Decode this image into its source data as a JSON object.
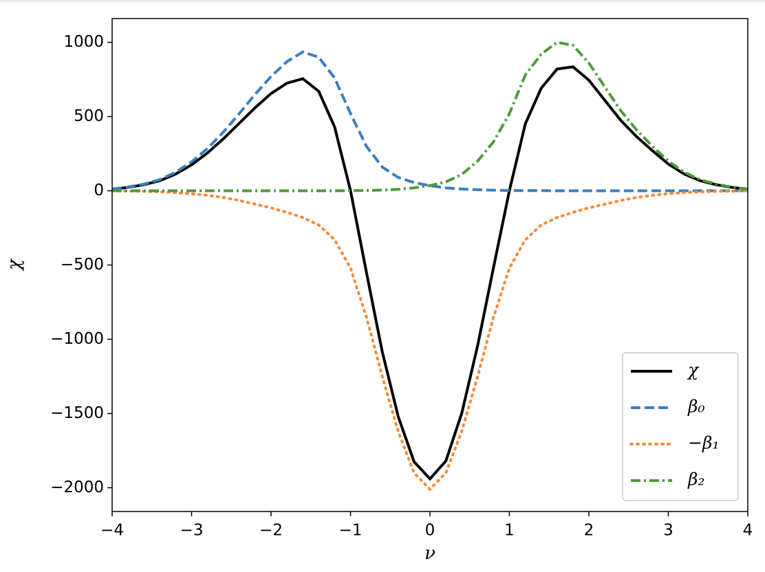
{
  "chart_data": {
    "type": "line",
    "x_label": "ν",
    "y_label": "χ",
    "x": [
      -4,
      -3.8,
      -3.6,
      -3.4,
      -3.2,
      -3,
      -2.8,
      -2.6,
      -2.4,
      -2.2,
      -2,
      -1.8,
      -1.6,
      -1.4,
      -1.2,
      -1,
      -0.8,
      -0.6,
      -0.4,
      -0.2,
      0,
      0.2,
      0.4,
      0.6,
      0.8,
      1,
      1.2,
      1.4,
      1.6,
      1.8,
      2,
      2.2,
      2.4,
      2.6,
      2.8,
      3,
      3.2,
      3.4,
      3.6,
      3.8,
      4
    ],
    "series": [
      {
        "name": "χ",
        "color": "#000000",
        "dash": "solid",
        "values": [
          11,
          23,
          41,
          68,
          113,
          175,
          255,
          350,
          455,
          560,
          655,
          725,
          755,
          670,
          430,
          1,
          -548,
          -1085,
          -1520,
          -1825,
          -1940,
          -1820,
          -1498,
          -1043,
          -516,
          2,
          451,
          691,
          820,
          835,
          745,
          610,
          475,
          365,
          270,
          180,
          113,
          68,
          41,
          23,
          11
        ]
      },
      {
        "name": "β₀",
        "color": "#3a7ebf",
        "dash": "dashed",
        "values": [
          12,
          25,
          45,
          75,
          125,
          195,
          285,
          395,
          520,
          650,
          770,
          870,
          935,
          900,
          760,
          520,
          300,
          160,
          90,
          55,
          35,
          20,
          12,
          7,
          4,
          2,
          1,
          1,
          0,
          0,
          0,
          0,
          0,
          0,
          0,
          0,
          0,
          0,
          0,
          0,
          0
        ]
      },
      {
        "name": "−β₁",
        "color": "#f58b3c",
        "dash": "dotted",
        "values": [
          -1,
          -2,
          -4,
          -7,
          -12,
          -20,
          -30,
          -45,
          -65,
          -90,
          -115,
          -145,
          -180,
          -230,
          -330,
          -520,
          -850,
          -1250,
          -1620,
          -1900,
          -2010,
          -1900,
          -1620,
          -1250,
          -850,
          -520,
          -330,
          -230,
          -180,
          -145,
          -115,
          -90,
          -65,
          -45,
          -30,
          -20,
          -12,
          -7,
          -4,
          -2,
          -1
        ]
      },
      {
        "name": "β₂",
        "color": "#4e9a3a",
        "dash": "dashdot",
        "values": [
          0,
          0,
          0,
          0,
          0,
          0,
          0,
          0,
          0,
          0,
          0,
          0,
          0,
          0,
          0,
          1,
          2,
          5,
          10,
          20,
          35,
          60,
          110,
          200,
          330,
          520,
          780,
          920,
          1000,
          980,
          860,
          700,
          540,
          410,
          300,
          200,
          125,
          75,
          45,
          25,
          12
        ]
      }
    ],
    "xlim": [
      -4,
      4
    ],
    "ylim": [
      -2160,
      1160
    ],
    "xticks": [
      {
        "value": -4,
        "label": "−4"
      },
      {
        "value": -3,
        "label": "−3"
      },
      {
        "value": -2,
        "label": "−2"
      },
      {
        "value": -1,
        "label": "−1"
      },
      0,
      1,
      2,
      3,
      4
    ],
    "yticks": [
      {
        "value": -2000,
        "label": "−2000"
      },
      {
        "value": -1500,
        "label": "−1500"
      },
      {
        "value": -1000,
        "label": "−1000"
      },
      {
        "value": -500,
        "label": "−500"
      },
      0,
      500,
      1000
    ],
    "legend": "lower right",
    "grid": false
  }
}
